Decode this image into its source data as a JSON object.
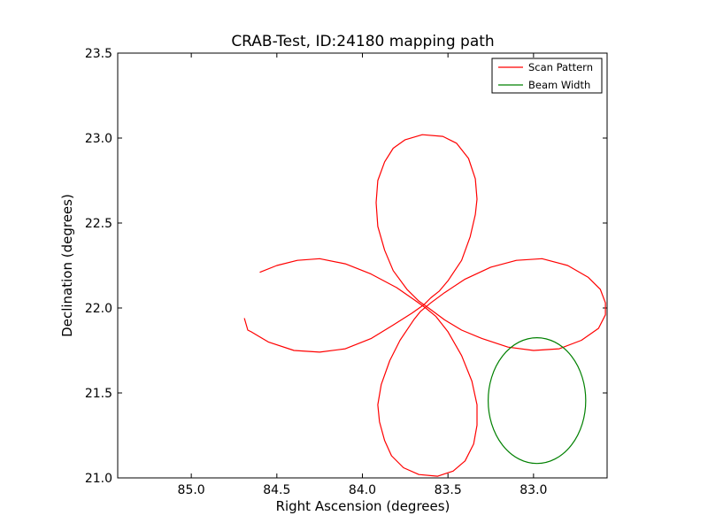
{
  "chart_data": {
    "type": "line",
    "title": "CRAB-Test, ID:24180 mapping path",
    "xlabel": "Right Ascension (degrees)",
    "ylabel": "Declination (degrees)",
    "xlim": [
      85.43,
      82.57
    ],
    "ylim": [
      21.0,
      23.5
    ],
    "x_inverted": true,
    "xticks": [
      85.0,
      84.5,
      84.0,
      83.5,
      83.0
    ],
    "xtick_labels": [
      "85.0",
      "84.5",
      "84.0",
      "83.5",
      "83.0"
    ],
    "yticks": [
      21.0,
      21.5,
      22.0,
      22.5,
      23.0,
      23.5
    ],
    "ytick_labels": [
      "21.0",
      "21.5",
      "22.0",
      "22.5",
      "23.0",
      "23.5"
    ],
    "grid": false,
    "legend": {
      "position": "top-right"
    },
    "series": [
      {
        "name": "Scan Pattern",
        "color": "#ff0000",
        "points": [
          [
            84.69,
            21.94
          ],
          [
            84.67,
            21.87
          ],
          [
            84.65,
            21.86
          ],
          [
            84.55,
            21.8
          ],
          [
            84.4,
            21.75
          ],
          [
            84.25,
            21.74
          ],
          [
            84.1,
            21.76
          ],
          [
            83.95,
            21.82
          ],
          [
            83.82,
            21.9
          ],
          [
            83.71,
            21.97
          ],
          [
            83.64,
            22.02
          ],
          [
            83.6,
            22.06
          ],
          [
            83.55,
            22.1
          ],
          [
            83.5,
            22.16
          ],
          [
            83.42,
            22.28
          ],
          [
            83.37,
            22.42
          ],
          [
            83.34,
            22.55
          ],
          [
            83.33,
            22.64
          ],
          [
            83.34,
            22.76
          ],
          [
            83.38,
            22.88
          ],
          [
            83.45,
            22.97
          ],
          [
            83.53,
            23.01
          ],
          [
            83.65,
            23.02
          ],
          [
            83.75,
            22.99
          ],
          [
            83.82,
            22.94
          ],
          [
            83.87,
            22.86
          ],
          [
            83.91,
            22.75
          ],
          [
            83.92,
            22.62
          ],
          [
            83.91,
            22.48
          ],
          [
            83.87,
            22.34
          ],
          [
            83.82,
            22.22
          ],
          [
            83.74,
            22.11
          ],
          [
            83.67,
            22.04
          ],
          [
            83.6,
            21.99
          ],
          [
            83.52,
            21.93
          ],
          [
            83.42,
            21.87
          ],
          [
            83.3,
            21.82
          ],
          [
            83.15,
            21.77
          ],
          [
            83.0,
            21.75
          ],
          [
            82.85,
            21.76
          ],
          [
            82.72,
            21.81
          ],
          [
            82.62,
            21.88
          ],
          [
            82.58,
            21.96
          ],
          [
            82.58,
            22.03
          ],
          [
            82.61,
            22.11
          ],
          [
            82.68,
            22.18
          ],
          [
            82.8,
            22.25
          ],
          [
            82.95,
            22.29
          ],
          [
            83.1,
            22.28
          ],
          [
            83.25,
            22.24
          ],
          [
            83.4,
            22.17
          ],
          [
            83.52,
            22.09
          ],
          [
            83.6,
            22.03
          ],
          [
            83.66,
            21.98
          ],
          [
            83.7,
            21.93
          ],
          [
            83.78,
            21.81
          ],
          [
            83.84,
            21.69
          ],
          [
            83.89,
            21.55
          ],
          [
            83.91,
            21.43
          ],
          [
            83.9,
            21.33
          ],
          [
            83.87,
            21.22
          ],
          [
            83.83,
            21.13
          ],
          [
            83.76,
            21.06
          ],
          [
            83.67,
            21.02
          ],
          [
            83.56,
            21.01
          ],
          [
            83.47,
            21.04
          ],
          [
            83.4,
            21.1
          ],
          [
            83.35,
            21.2
          ],
          [
            83.33,
            21.31
          ],
          [
            83.33,
            21.43
          ],
          [
            83.36,
            21.57
          ],
          [
            83.42,
            21.72
          ],
          [
            83.5,
            21.86
          ],
          [
            83.57,
            21.95
          ],
          [
            83.63,
            22.0
          ],
          [
            83.7,
            22.05
          ],
          [
            83.8,
            22.12
          ],
          [
            83.95,
            22.2
          ],
          [
            84.1,
            22.26
          ],
          [
            84.25,
            22.29
          ],
          [
            84.38,
            22.28
          ],
          [
            84.5,
            22.25
          ],
          [
            84.6,
            22.21
          ]
        ]
      },
      {
        "name": "Beam Width",
        "color": "#008000",
        "shape": "circle",
        "center": [
          82.98,
          21.455
        ],
        "radius_ra": 0.285,
        "radius_dec": 0.37
      }
    ]
  }
}
